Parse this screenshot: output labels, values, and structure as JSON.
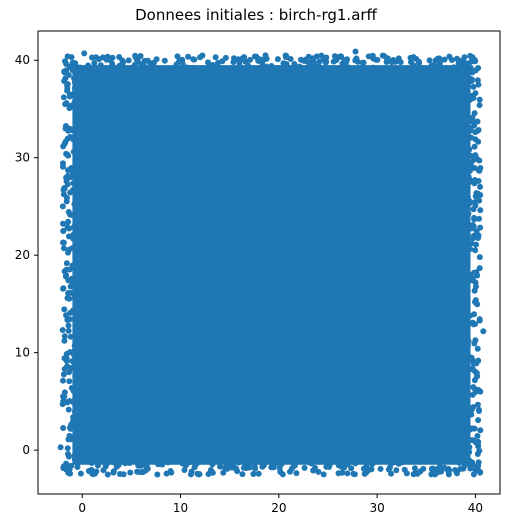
{
  "chart_data": {
    "type": "scatter",
    "title": "Donnees initiales : birch-rg1.arff",
    "xlabel": "",
    "ylabel": "",
    "xlim": [
      -4.5,
      42.5
    ],
    "ylim": [
      -4.5,
      43
    ],
    "x_ticks": [
      0,
      10,
      20,
      30,
      40
    ],
    "y_ticks": [
      0,
      10,
      20,
      30,
      40
    ],
    "grid": false,
    "legend": "none",
    "series": [
      {
        "color": "#1f77b4",
        "distribution": "uniform",
        "x_range": [
          -2,
          40.5
        ],
        "y_range": [
          -2.5,
          40.5
        ],
        "sample_points": [
          [
            -1.9,
            22.5
          ],
          [
            -1.6,
            35.6
          ],
          [
            -2.2,
            0.3
          ],
          [
            40.8,
            12.2
          ],
          [
            40.5,
            6.0
          ],
          [
            40.3,
            37.5
          ],
          [
            0.2,
            40.7
          ],
          [
            27.8,
            40.9
          ],
          [
            1.0,
            -2.4
          ],
          [
            36.5,
            -2.2
          ],
          [
            -1.5,
            15.6
          ],
          [
            40.0,
            25.1
          ],
          [
            -1.2,
            28.0
          ],
          [
            39.8,
            1.0
          ],
          [
            -1.7,
            33.0
          ]
        ]
      }
    ]
  }
}
